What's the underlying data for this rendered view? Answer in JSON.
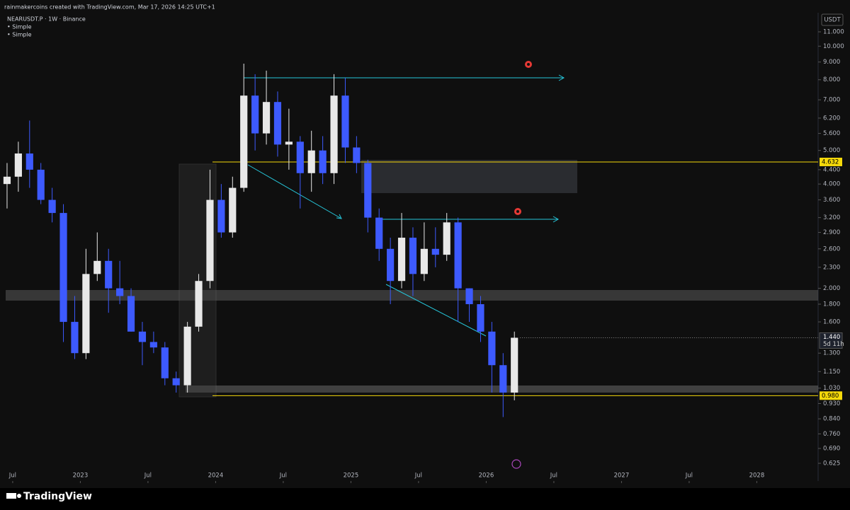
{
  "chart_data": {
    "type": "candlestick",
    "watermark": "rainmakercoins created with TradingView.com, Mar 17, 2026 14:25 UTC+1",
    "symbol": "NEARUSDT.P · 1W · Binance",
    "indicators": [
      "• Simple",
      "• Simple"
    ],
    "currency": "USDT",
    "brand": "TradingView",
    "log_scale": true,
    "up_color": "#e8e8e8",
    "down_color": "#3d5afe",
    "x": [
      "2022-06",
      "2022-07",
      "2022-08",
      "2022-09",
      "2022-10",
      "2022-11",
      "2022-12",
      "2023-01",
      "2023-02",
      "2023-03",
      "2023-04",
      "2023-05",
      "2023-06",
      "2023-07",
      "2023-08",
      "2023-09",
      "2023-10",
      "2023-11",
      "2023-12",
      "2024-01",
      "2024-02",
      "2024-03",
      "2024-04",
      "2024-05",
      "2024-06",
      "2024-07",
      "2024-08",
      "2024-09",
      "2024-10",
      "2024-11",
      "2024-12",
      "2025-01",
      "2025-02",
      "2025-03",
      "2025-04",
      "2025-05",
      "2025-06",
      "2025-07",
      "2025-08",
      "2025-09",
      "2025-10",
      "2025-11",
      "2025-12",
      "2026-01",
      "2026-02",
      "2026-03"
    ],
    "open": [
      4.0,
      4.2,
      4.9,
      4.4,
      3.6,
      3.3,
      1.6,
      1.3,
      2.2,
      2.4,
      2.0,
      1.9,
      1.5,
      1.4,
      1.35,
      1.1,
      1.05,
      1.55,
      2.1,
      3.6,
      2.9,
      3.9,
      7.2,
      5.6,
      6.9,
      5.2,
      5.3,
      4.3,
      5.0,
      4.3,
      7.2,
      5.1,
      4.6,
      3.2,
      2.6,
      2.1,
      2.8,
      2.2,
      2.6,
      2.5,
      3.1,
      2.0,
      1.8,
      1.5,
      1.2,
      1.0
    ],
    "high": [
      4.6,
      5.3,
      6.1,
      4.6,
      3.9,
      3.5,
      1.9,
      2.6,
      2.9,
      2.6,
      2.4,
      2.0,
      1.6,
      1.5,
      1.4,
      1.15,
      1.6,
      2.2,
      4.4,
      4.0,
      4.2,
      8.9,
      8.3,
      8.5,
      7.4,
      6.6,
      5.5,
      5.7,
      5.5,
      8.3,
      8.1,
      5.5,
      4.7,
      3.4,
      2.8,
      3.3,
      3.0,
      3.1,
      3.0,
      3.3,
      3.2,
      2.0,
      1.9,
      1.6,
      1.3,
      1.5
    ],
    "low": [
      3.4,
      3.8,
      3.9,
      3.5,
      3.1,
      1.4,
      1.25,
      1.25,
      2.1,
      1.7,
      1.8,
      1.5,
      1.2,
      1.3,
      1.05,
      1.0,
      1.0,
      1.5,
      2.0,
      2.8,
      2.8,
      3.8,
      5.0,
      5.2,
      4.8,
      4.4,
      3.4,
      3.8,
      4.0,
      4.0,
      4.6,
      4.3,
      2.9,
      2.4,
      1.8,
      2.0,
      1.9,
      2.1,
      2.3,
      2.4,
      1.6,
      1.6,
      1.4,
      1.0,
      0.85,
      0.95
    ],
    "close": [
      4.2,
      4.9,
      4.4,
      3.6,
      3.3,
      1.6,
      1.3,
      2.2,
      2.4,
      2.0,
      1.9,
      1.5,
      1.4,
      1.35,
      1.1,
      1.05,
      1.55,
      2.1,
      3.6,
      2.9,
      3.9,
      7.2,
      5.6,
      6.9,
      5.2,
      5.3,
      4.3,
      5.0,
      4.3,
      7.2,
      5.1,
      4.6,
      3.2,
      2.6,
      2.1,
      2.8,
      2.2,
      2.6,
      2.5,
      3.1,
      2.0,
      1.8,
      1.5,
      1.2,
      1.0,
      1.44
    ],
    "xlim": [
      "2022-06",
      "2028-06"
    ],
    "xticks": [
      {
        "value": "2022-07",
        "label": "Jul"
      },
      {
        "value": "2023-01",
        "label": "2023"
      },
      {
        "value": "2023-07",
        "label": "Jul"
      },
      {
        "value": "2024-01",
        "label": "2024"
      },
      {
        "value": "2024-07",
        "label": "Jul"
      },
      {
        "value": "2025-01",
        "label": "2025"
      },
      {
        "value": "2025-07",
        "label": "Jul"
      },
      {
        "value": "2026-01",
        "label": "2026"
      },
      {
        "value": "2026-07",
        "label": "Jul"
      },
      {
        "value": "2027-01",
        "label": "2027"
      },
      {
        "value": "2027-07",
        "label": "Jul"
      },
      {
        "value": "2028-01",
        "label": "2028"
      }
    ],
    "ylim": [
      0.625,
      11
    ],
    "yticks": [
      {
        "value": 11,
        "label": "11.000"
      },
      {
        "value": 10,
        "label": "10.000"
      },
      {
        "value": 9,
        "label": "9.000"
      },
      {
        "value": 8,
        "label": "8.000"
      },
      {
        "value": 7,
        "label": "7.000"
      },
      {
        "value": 6.2,
        "label": "6.200"
      },
      {
        "value": 5.6,
        "label": "5.600"
      },
      {
        "value": 5,
        "label": "5.000"
      },
      {
        "value": 4.4,
        "label": "4.400"
      },
      {
        "value": 4,
        "label": "4.000"
      },
      {
        "value": 3.6,
        "label": "3.600"
      },
      {
        "value": 3.2,
        "label": "3.200"
      },
      {
        "value": 2.9,
        "label": "2.900"
      },
      {
        "value": 2.6,
        "label": "2.600"
      },
      {
        "value": 2.3,
        "label": "2.300"
      },
      {
        "value": 2,
        "label": "2.000"
      },
      {
        "value": 1.8,
        "label": "1.800"
      },
      {
        "value": 1.6,
        "label": "1.600"
      },
      {
        "value": 1.3,
        "label": "1.300"
      },
      {
        "value": 1.15,
        "label": "1.150"
      },
      {
        "value": 1.03,
        "label": "1.030"
      },
      {
        "value": 0.93,
        "label": "0.930"
      },
      {
        "value": 0.84,
        "label": "0.840"
      },
      {
        "value": 0.76,
        "label": "0.760"
      },
      {
        "value": 0.69,
        "label": "0.690"
      },
      {
        "value": 0.625,
        "label": "0.625"
      }
    ],
    "levels": [
      {
        "value": 4.632,
        "color": "#f5d90a"
      },
      {
        "value": {
          "value": 0.98,
          "label": "0.980"
        },
        "color": "#f5d90a"
      }
    ],
    "last_price": {
      "value": 1.44,
      "label": "1.440"
    },
    "countdown": "5d 11h"
  }
}
